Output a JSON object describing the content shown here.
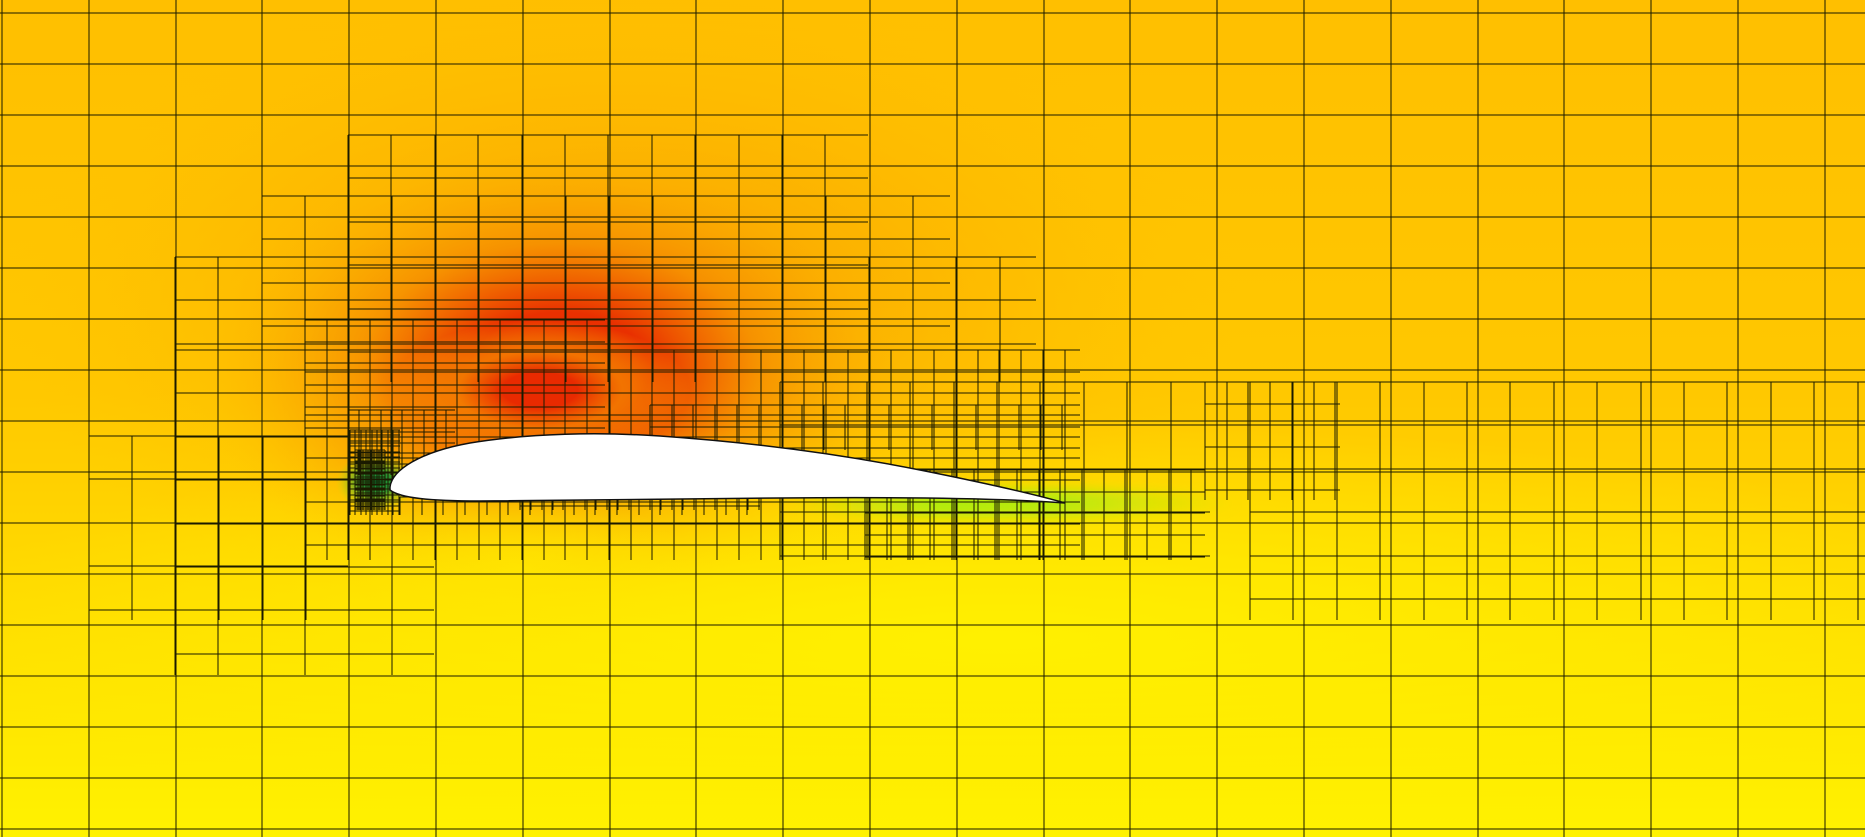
{
  "image": {
    "subject": "airfoil",
    "colors": {
      "suction_peak": "#e82a00",
      "high": "#f58a00",
      "mid": "#ffbf00",
      "low": "#ffe600",
      "freestream": "#fff200",
      "stagnation": "#008c3c",
      "wake": "#a8ee10",
      "mesh_lines": "#1a1a00",
      "body_fill": "#ffffff",
      "body_outline": "#111111"
    }
  }
}
